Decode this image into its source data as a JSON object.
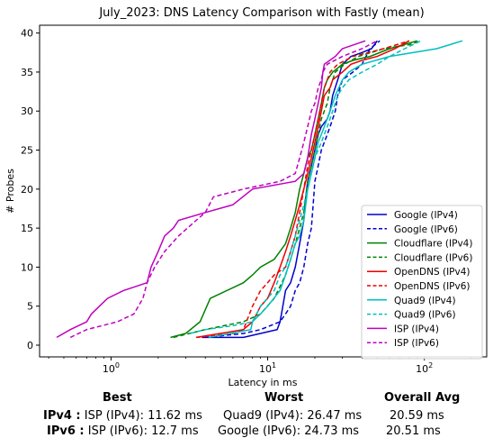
{
  "chart_data": {
    "type": "line",
    "title": "July_2023: DNS Latency Comparison with Fastly (mean)",
    "xlabel": "Latency in ms",
    "ylabel": "# Probes",
    "xscale": "log",
    "xlim": [
      0.35,
      250
    ],
    "ylim": [
      -1.5,
      41
    ],
    "x_ticks": [
      {
        "value": 1,
        "base": "10",
        "exp": "0"
      },
      {
        "value": 10,
        "base": "10",
        "exp": "1"
      },
      {
        "value": 100,
        "base": "10",
        "exp": "2"
      }
    ],
    "y_ticks": [
      0,
      5,
      10,
      15,
      20,
      25,
      30,
      35,
      40
    ],
    "grid": false,
    "legend_position": "lower-right",
    "series": [
      {
        "name": "Google (IPv4)",
        "color": "#0000cc",
        "dash": "solid",
        "points": [
          [
            3.8,
            1
          ],
          [
            7,
            1
          ],
          [
            9,
            1.5
          ],
          [
            11.5,
            2
          ],
          [
            12,
            3
          ],
          [
            12.5,
            5
          ],
          [
            13,
            7
          ],
          [
            14,
            8
          ],
          [
            15,
            10
          ],
          [
            16,
            13
          ],
          [
            17,
            16
          ],
          [
            17.5,
            19
          ],
          [
            18,
            21
          ],
          [
            19,
            23
          ],
          [
            20,
            25
          ],
          [
            21,
            27
          ],
          [
            22,
            28
          ],
          [
            24,
            29
          ],
          [
            25,
            30
          ],
          [
            26,
            32
          ],
          [
            28,
            34
          ],
          [
            30,
            36
          ],
          [
            34,
            37
          ],
          [
            40,
            37.5
          ],
          [
            46,
            38
          ],
          [
            50,
            39
          ]
        ]
      },
      {
        "name": "Google (IPv6)",
        "color": "#0000cc",
        "dash": "dashed",
        "points": [
          [
            4,
            1
          ],
          [
            7,
            1.5
          ],
          [
            9,
            2
          ],
          [
            12,
            3
          ],
          [
            13,
            4
          ],
          [
            14,
            5
          ],
          [
            15,
            7
          ],
          [
            16,
            8
          ],
          [
            17,
            10
          ],
          [
            18,
            13
          ],
          [
            19,
            15
          ],
          [
            19.5,
            18
          ],
          [
            20,
            21
          ],
          [
            21,
            23
          ],
          [
            22,
            25
          ],
          [
            24,
            27
          ],
          [
            25,
            28
          ],
          [
            27,
            30
          ],
          [
            28,
            32
          ],
          [
            30,
            34
          ],
          [
            35,
            35
          ],
          [
            40,
            36
          ],
          [
            45,
            38
          ],
          [
            52,
            39
          ]
        ]
      },
      {
        "name": "Cloudflare (IPv4)",
        "color": "#008000",
        "dash": "solid",
        "points": [
          [
            2.4,
            1
          ],
          [
            3,
            1.5
          ],
          [
            3.7,
            3
          ],
          [
            4.3,
            6
          ],
          [
            7,
            8
          ],
          [
            8,
            9
          ],
          [
            9,
            10
          ],
          [
            11,
            11
          ],
          [
            13,
            13
          ],
          [
            14,
            15
          ],
          [
            15,
            17
          ],
          [
            16,
            20
          ],
          [
            17,
            22
          ],
          [
            18,
            24
          ],
          [
            19,
            25
          ],
          [
            20,
            27
          ],
          [
            21,
            29
          ],
          [
            22,
            31
          ],
          [
            23,
            33
          ],
          [
            24,
            34
          ],
          [
            26,
            35
          ],
          [
            30,
            36
          ],
          [
            35,
            36.5
          ],
          [
            45,
            37
          ],
          [
            60,
            38
          ],
          [
            90,
            39
          ]
        ]
      },
      {
        "name": "Cloudflare (IPv6)",
        "color": "#008000",
        "dash": "dashed",
        "points": [
          [
            2.5,
            1
          ],
          [
            4,
            2
          ],
          [
            7,
            3
          ],
          [
            9,
            4
          ],
          [
            11,
            6
          ],
          [
            13,
            9
          ],
          [
            14,
            11
          ],
          [
            15,
            13
          ],
          [
            16,
            15
          ],
          [
            17,
            17
          ],
          [
            17.5,
            19
          ],
          [
            18,
            21
          ],
          [
            19,
            23
          ],
          [
            20,
            25
          ],
          [
            21,
            27
          ],
          [
            22,
            29
          ],
          [
            24,
            31
          ],
          [
            25,
            33
          ],
          [
            27,
            35
          ],
          [
            31,
            36
          ],
          [
            38,
            37
          ],
          [
            55,
            38
          ],
          [
            80,
            38.5
          ],
          [
            95,
            39
          ]
        ]
      },
      {
        "name": "OpenDNS (IPv4)",
        "color": "#ee0000",
        "dash": "solid",
        "points": [
          [
            3.5,
            1
          ],
          [
            5,
            1.5
          ],
          [
            7,
            2
          ],
          [
            8,
            3
          ],
          [
            8.5,
            4
          ],
          [
            9,
            5
          ],
          [
            10,
            6
          ],
          [
            11,
            8
          ],
          [
            12,
            10
          ],
          [
            13,
            12
          ],
          [
            14,
            14
          ],
          [
            15,
            16
          ],
          [
            16,
            18
          ],
          [
            17,
            20
          ],
          [
            18,
            22
          ],
          [
            19,
            24
          ],
          [
            20,
            26
          ],
          [
            21,
            28
          ],
          [
            22,
            30
          ],
          [
            23,
            32
          ],
          [
            25,
            33
          ],
          [
            26,
            34
          ],
          [
            30,
            35
          ],
          [
            34,
            36
          ],
          [
            40,
            36.5
          ],
          [
            50,
            37
          ],
          [
            65,
            38
          ],
          [
            80,
            39
          ]
        ]
      },
      {
        "name": "OpenDNS (IPv6)",
        "color": "#ee0000",
        "dash": "dashed",
        "points": [
          [
            3.5,
            1
          ],
          [
            6,
            1.5
          ],
          [
            7,
            2
          ],
          [
            8,
            5
          ],
          [
            9,
            7
          ],
          [
            10,
            8
          ],
          [
            11,
            9
          ],
          [
            13,
            10
          ],
          [
            14,
            12
          ],
          [
            15,
            14
          ],
          [
            16,
            17
          ],
          [
            17,
            20
          ],
          [
            18,
            23
          ],
          [
            19,
            25
          ],
          [
            20,
            27
          ],
          [
            21,
            29
          ],
          [
            22,
            31
          ],
          [
            23,
            33
          ],
          [
            24,
            34
          ],
          [
            25,
            35
          ],
          [
            28,
            36
          ],
          [
            35,
            37
          ],
          [
            55,
            38
          ],
          [
            80,
            39
          ]
        ]
      },
      {
        "name": "Quad9 (IPv4)",
        "color": "#00bfbf",
        "dash": "solid",
        "points": [
          [
            4.2,
            1
          ],
          [
            7.8,
            2
          ],
          [
            8,
            3
          ],
          [
            9,
            4
          ],
          [
            10,
            5
          ],
          [
            12,
            7
          ],
          [
            13,
            9
          ],
          [
            14,
            11
          ],
          [
            15,
            13
          ],
          [
            16,
            14
          ],
          [
            17,
            16
          ],
          [
            17.5,
            18
          ],
          [
            18,
            20
          ],
          [
            19,
            22
          ],
          [
            20,
            24
          ],
          [
            21,
            26
          ],
          [
            23,
            28
          ],
          [
            25,
            30
          ],
          [
            27,
            32
          ],
          [
            30,
            34
          ],
          [
            33,
            35
          ],
          [
            40,
            36
          ],
          [
            60,
            37
          ],
          [
            120,
            38
          ],
          [
            175,
            39
          ]
        ]
      },
      {
        "name": "Quad9 (IPv6)",
        "color": "#00bfbf",
        "dash": "dashed",
        "points": [
          [
            3.2,
            1.5
          ],
          [
            4,
            2
          ],
          [
            6,
            2.5
          ],
          [
            8,
            3
          ],
          [
            9,
            5
          ],
          [
            11,
            7
          ],
          [
            12,
            9
          ],
          [
            13,
            10
          ],
          [
            14,
            12
          ],
          [
            15,
            14
          ],
          [
            16,
            16
          ],
          [
            17,
            18
          ],
          [
            18,
            20
          ],
          [
            19,
            22
          ],
          [
            20,
            24
          ],
          [
            22,
            26
          ],
          [
            24,
            28
          ],
          [
            26,
            30
          ],
          [
            28,
            32
          ],
          [
            30,
            33
          ],
          [
            33,
            34
          ],
          [
            40,
            35
          ],
          [
            50,
            36
          ],
          [
            60,
            37
          ],
          [
            75,
            38
          ],
          [
            95,
            39
          ]
        ]
      },
      {
        "name": "ISP (IPv4)",
        "color": "#bf00bf",
        "dash": "solid",
        "points": [
          [
            0.45,
            1
          ],
          [
            0.55,
            2
          ],
          [
            0.7,
            3
          ],
          [
            0.75,
            4
          ],
          [
            0.95,
            6
          ],
          [
            1.2,
            7
          ],
          [
            1.7,
            8
          ],
          [
            1.8,
            10
          ],
          [
            2,
            12
          ],
          [
            2.2,
            14
          ],
          [
            2.5,
            15
          ],
          [
            2.7,
            16
          ],
          [
            4,
            17
          ],
          [
            6,
            18
          ],
          [
            8,
            20
          ],
          [
            15,
            21
          ],
          [
            17,
            22
          ],
          [
            18,
            24
          ],
          [
            19,
            27
          ],
          [
            20,
            29
          ],
          [
            21,
            31
          ],
          [
            22,
            33
          ],
          [
            22.5,
            35
          ],
          [
            23,
            36
          ],
          [
            27,
            37
          ],
          [
            30,
            38
          ],
          [
            42,
            39
          ]
        ]
      },
      {
        "name": "ISP (IPv6)",
        "color": "#bf00bf",
        "dash": "dashed",
        "points": [
          [
            0.55,
            1
          ],
          [
            0.7,
            2
          ],
          [
            1.1,
            3
          ],
          [
            1.4,
            4
          ],
          [
            1.6,
            6
          ],
          [
            1.7,
            8
          ],
          [
            1.9,
            10
          ],
          [
            2.2,
            12
          ],
          [
            2.7,
            14
          ],
          [
            3.5,
            16
          ],
          [
            4,
            17
          ],
          [
            4.5,
            19
          ],
          [
            7,
            20
          ],
          [
            12,
            21
          ],
          [
            15,
            22
          ],
          [
            16,
            24
          ],
          [
            17,
            26
          ],
          [
            18,
            28
          ],
          [
            19,
            30
          ],
          [
            20,
            31
          ],
          [
            21,
            33
          ],
          [
            22,
            34
          ],
          [
            22.5,
            35
          ],
          [
            24,
            36
          ],
          [
            30,
            37
          ],
          [
            40,
            38
          ],
          [
            50,
            39
          ]
        ]
      }
    ]
  },
  "summary": {
    "headers": {
      "best": "Best",
      "worst": "Worst",
      "avg": "Overall Avg"
    },
    "rows": [
      {
        "label": "IPv4 :",
        "best": "ISP (IPv4): 11.62 ms",
        "worst": "Quad9 (IPv4): 26.47 ms",
        "avg": "20.59 ms"
      },
      {
        "label": "IPv6 :",
        "best": "ISP (IPv6): 12.7 ms",
        "worst": "Google (IPv6): 24.73 ms",
        "avg": "20.51 ms"
      }
    ]
  }
}
